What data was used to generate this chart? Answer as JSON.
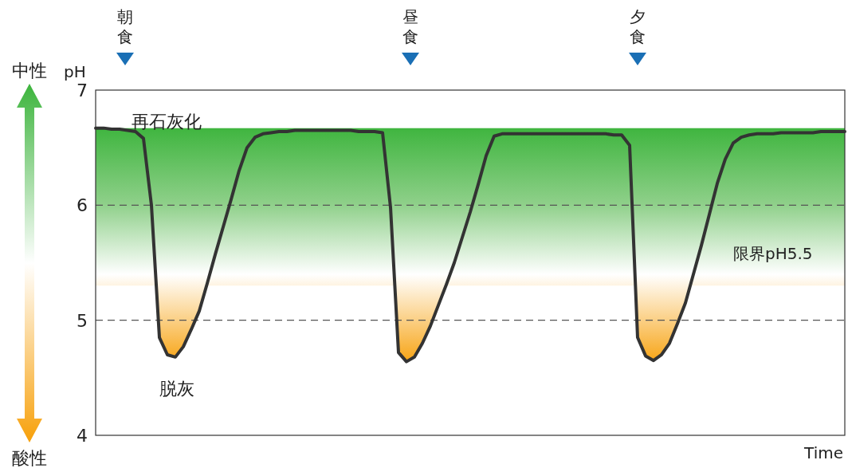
{
  "chart_data": {
    "type": "line",
    "xlabel": "Time",
    "ylabel": "pH",
    "categories": [
      null,
      null,
      null,
      null,
      null,
      null,
      null,
      null,
      null,
      null,
      null,
      null,
      null,
      null,
      null,
      null,
      null,
      null,
      null,
      null,
      null,
      null,
      null,
      null,
      null,
      null,
      null,
      null,
      null,
      null,
      null,
      null,
      null,
      null,
      null,
      null,
      null,
      null,
      null,
      null,
      null,
      null,
      null,
      null,
      null,
      null,
      null,
      null,
      null,
      null,
      null,
      null,
      null,
      null,
      null,
      null,
      null,
      null,
      null,
      null,
      null,
      null,
      null,
      null,
      null,
      null,
      null,
      null,
      null,
      null,
      null,
      null,
      null,
      null,
      null,
      null,
      null,
      null,
      null,
      null,
      null,
      null,
      null,
      null,
      null,
      null,
      null,
      null,
      null,
      null,
      null,
      null,
      null,
      null,
      null
    ],
    "series": [
      {
        "color": "#333333",
        "values": [
          6.67,
          6.67,
          6.66,
          6.66,
          6.65,
          6.64,
          6.58,
          6.0,
          4.85,
          4.7,
          4.68,
          4.77,
          4.92,
          5.08,
          5.32,
          5.57,
          5.81,
          6.05,
          6.3,
          6.5,
          6.59,
          6.62,
          6.63,
          6.64,
          6.64,
          6.65,
          6.65,
          6.65,
          6.65,
          6.65,
          6.65,
          6.65,
          6.65,
          6.64,
          6.64,
          6.64,
          6.63,
          5.98,
          4.72,
          4.64,
          4.68,
          4.8,
          4.95,
          5.13,
          5.31,
          5.5,
          5.72,
          5.94,
          6.18,
          6.43,
          6.6,
          6.62,
          6.62,
          6.62,
          6.62,
          6.62,
          6.62,
          6.62,
          6.62,
          6.62,
          6.62,
          6.62,
          6.62,
          6.62,
          6.62,
          6.61,
          6.61,
          6.52,
          4.85,
          4.69,
          4.65,
          4.7,
          4.8,
          4.97,
          5.15,
          5.4,
          5.65,
          5.92,
          6.19,
          6.4,
          6.54,
          6.59,
          6.61,
          6.62,
          6.62,
          6.62,
          6.63,
          6.63,
          6.63,
          6.63,
          6.63,
          6.64,
          6.64,
          6.64,
          6.64
        ]
      }
    ],
    "ylim": [
      4,
      7
    ],
    "yticks": [
      4,
      5,
      6,
      7
    ],
    "ref_lines": [
      {
        "axis": "y",
        "value": 5,
        "color": "#555555",
        "line_style": "dashed"
      },
      {
        "axis": "y",
        "value": 6,
        "color": "#555555",
        "line_style": "dashed"
      }
    ],
    "annotations": [
      "朝食",
      "昼食",
      "夕食",
      "再石灰化",
      "脱灰",
      "限界pH5.5",
      "中性",
      "酸性"
    ],
    "grid": false,
    "marker": "none",
    "line_style": "solid"
  }
}
